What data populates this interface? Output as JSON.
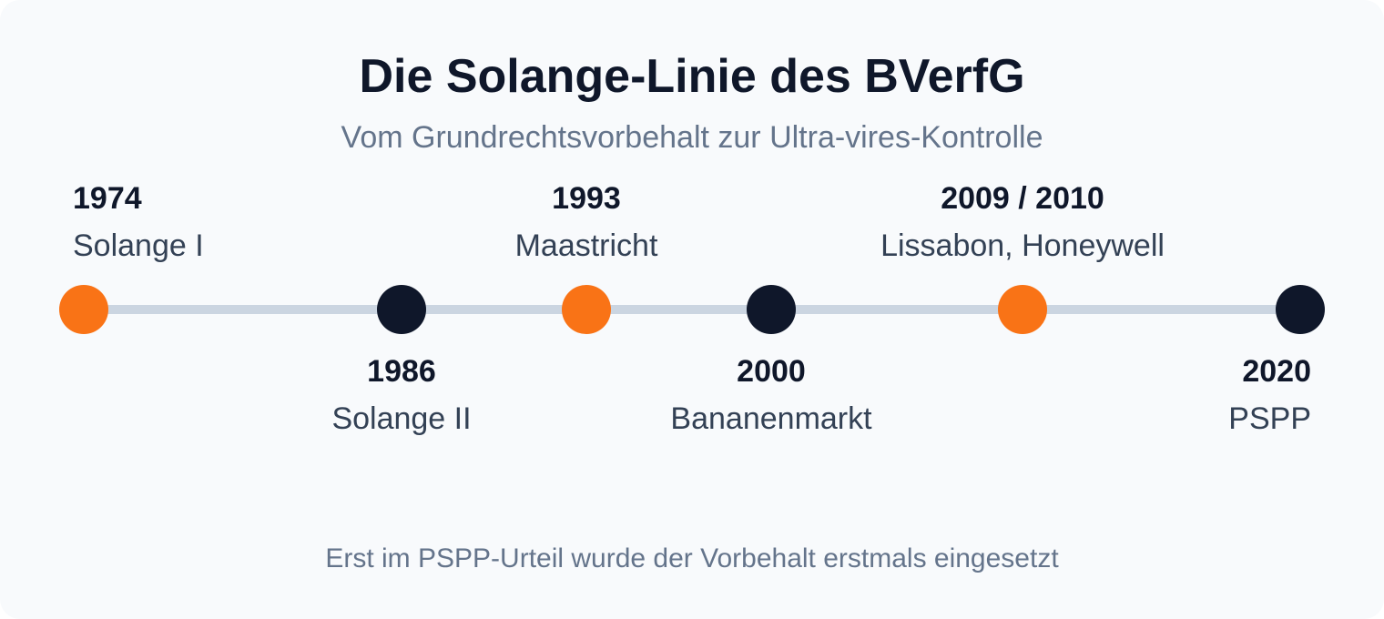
{
  "title": "Die Solange-Linie des BVerfG",
  "subtitle": "Vom Grundrechtsvorbehalt zur Ultra-vires-Kontrolle",
  "footnote": "Erst im PSPP-Urteil wurde der Vorbehalt erstmals eingesetzt",
  "colors": {
    "accent": "#f97316",
    "dark": "#0f172a",
    "line": "#cbd5e1",
    "muted": "#64748b",
    "background": "#f8fafc"
  },
  "events": [
    {
      "year": "1974",
      "case": "Solange I",
      "color": "orange",
      "position": "above"
    },
    {
      "year": "1986",
      "case": "Solange II",
      "color": "navy",
      "position": "below"
    },
    {
      "year": "1993",
      "case": "Maastricht",
      "color": "orange",
      "position": "above"
    },
    {
      "year": "2000",
      "case": "Bananenmarkt",
      "color": "navy",
      "position": "below"
    },
    {
      "year": "2009 / 2010",
      "case": "Lissabon, Honeywell",
      "color": "orange",
      "position": "above"
    },
    {
      "year": "2020",
      "case": "PSPP",
      "color": "navy",
      "position": "below"
    }
  ]
}
